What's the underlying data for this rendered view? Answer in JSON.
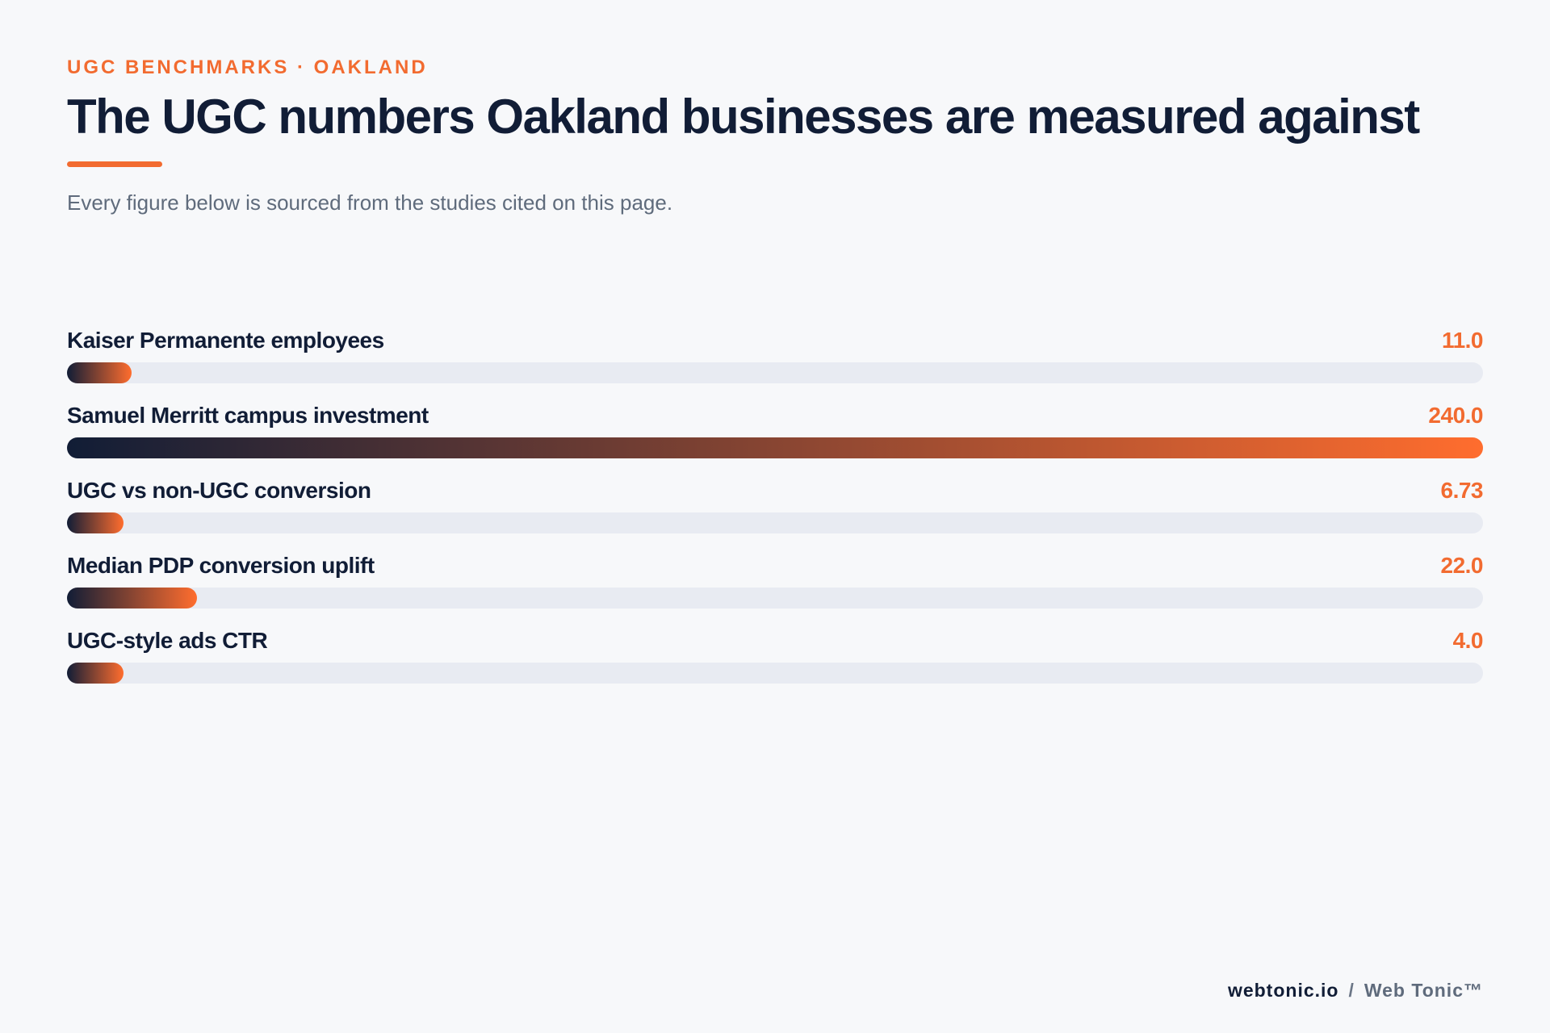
{
  "header": {
    "eyebrow": "UGC BENCHMARKS · OAKLAND",
    "title": "The UGC numbers Oakland businesses are measured against",
    "subtitle": "Every figure below is sourced from the studies cited on this page."
  },
  "chart_data": {
    "type": "bar",
    "orientation": "horizontal",
    "categories": [
      "Kaiser Permanente employees",
      "Samuel Merritt campus investment",
      "UGC vs non-UGC conversion",
      "Median PDP conversion uplift",
      "UGC-style ads CTR"
    ],
    "values": [
      11.0,
      240.0,
      6.73,
      22.0,
      4.0
    ],
    "value_labels": [
      "11.0",
      "240.0",
      "6.73",
      "22.0",
      "4.0"
    ],
    "xlim": [
      0,
      240
    ],
    "grid": false,
    "legend": "none",
    "colors": {
      "gradient_start": "#111d36",
      "gradient_end": "#ff6d2e",
      "track": "#e8ebf2",
      "value_text": "#f26b30"
    }
  },
  "footer": {
    "domain": "webtonic.io",
    "separator": "/",
    "brand": "Web Tonic™"
  }
}
